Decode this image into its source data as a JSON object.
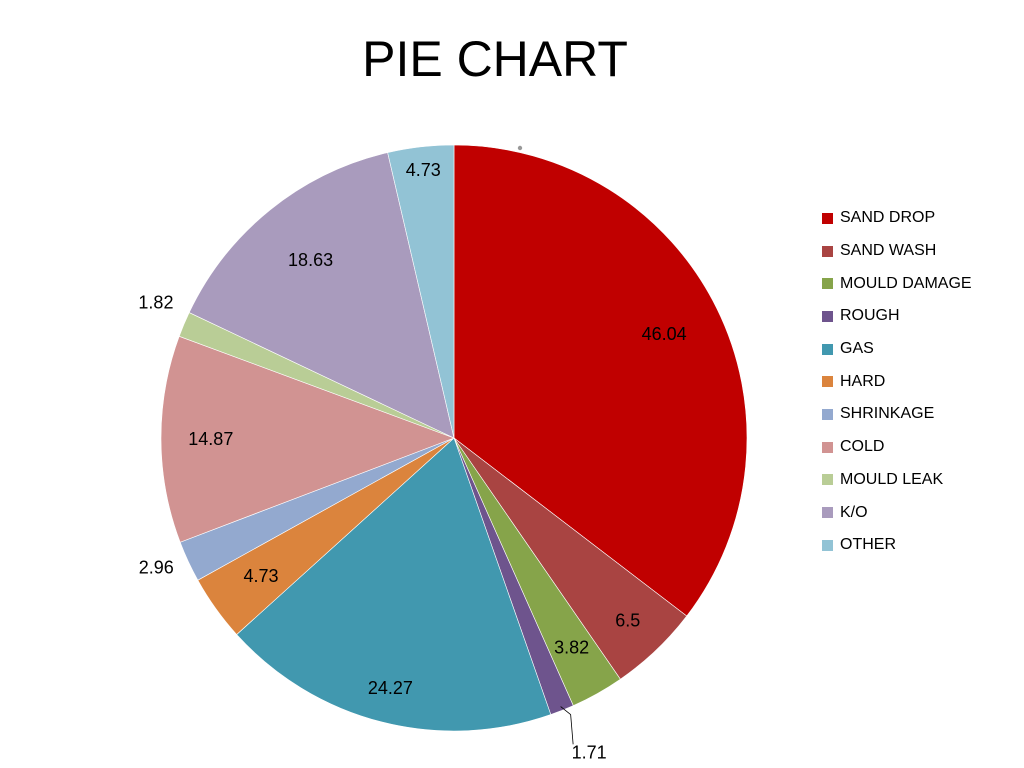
{
  "chart_data": {
    "type": "pie",
    "title": "PIE CHART",
    "legend_position": "right",
    "slices": [
      {
        "name": "SAND DROP",
        "value": 46.04,
        "color": "#C00000"
      },
      {
        "name": "SAND WASH",
        "value": 6.5,
        "color": "#A94442"
      },
      {
        "name": "MOULD DAMAGE",
        "value": 3.82,
        "color": "#86A44A"
      },
      {
        "name": "ROUGH",
        "value": 1.71,
        "color": "#6E548D"
      },
      {
        "name": "GAS",
        "value": 24.27,
        "color": "#4198AF"
      },
      {
        "name": "HARD",
        "value": 4.73,
        "color": "#DB843D"
      },
      {
        "name": "SHRINKAGE",
        "value": 2.96,
        "color": "#93A9CF"
      },
      {
        "name": "COLD",
        "value": 14.87,
        "color": "#D19392"
      },
      {
        "name": "MOULD LEAK",
        "value": 1.82,
        "color": "#B9CD96"
      },
      {
        "name": "K/O",
        "value": 18.63,
        "color": "#A99BBD"
      },
      {
        "name": "OTHER",
        "value": 4.73,
        "color": "#92C3D5"
      }
    ]
  }
}
